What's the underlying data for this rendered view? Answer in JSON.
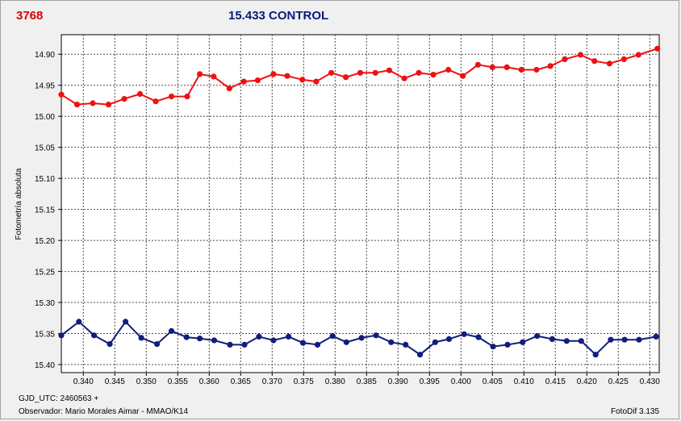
{
  "header": {
    "star_id": "3768",
    "title": "15.433 CONTROL"
  },
  "footer": {
    "gjd": "GJD_UTC: 2460563 +",
    "observer": "Observador: Mario Morales Aimar - MMAO/K14",
    "software": "FotoDif 3.135"
  },
  "colors": {
    "star": "#ee1111",
    "control": "#0f1f7a",
    "title_star": "#dd0000",
    "title_control": "#0a1a7a",
    "grid": "#4a4a4a",
    "plot_bg": "#ffffff"
  },
  "chart_data": {
    "type": "line",
    "title": "15.433 CONTROL",
    "xlabel": "",
    "ylabel": "Fotometría absoluta",
    "xlim": [
      0.3365,
      0.4315
    ],
    "ylim": [
      15.4,
      14.875
    ],
    "y_inverted": true,
    "grid": true,
    "x_ticks": [
      "0.340",
      "0.345",
      "0.350",
      "0.355",
      "0.360",
      "0.365",
      "0.370",
      "0.375",
      "0.380",
      "0.385",
      "0.390",
      "0.395",
      "0.400",
      "0.405",
      "0.410",
      "0.415",
      "0.420",
      "0.425",
      "0.430"
    ],
    "y_ticks": [
      "14.90",
      "14.95",
      "15.00",
      "15.05",
      "15.10",
      "15.15",
      "15.20",
      "15.25",
      "15.30",
      "15.35",
      "15.40"
    ],
    "series": [
      {
        "color": "#ee1111",
        "x": [
          0.3365,
          0.339,
          0.3415,
          0.344,
          0.3465,
          0.349,
          0.3515,
          0.354,
          0.3565,
          0.3585,
          0.3607,
          0.3632,
          0.3655,
          0.3677,
          0.3702,
          0.3724,
          0.3748,
          0.377,
          0.3794,
          0.3817,
          0.384,
          0.3864,
          0.3886,
          0.391,
          0.3933,
          0.3956,
          0.398,
          0.4003,
          0.4027,
          0.405,
          0.4073,
          0.4096,
          0.412,
          0.4142,
          0.4165,
          0.419,
          0.4212,
          0.4236,
          0.4259,
          0.4282,
          0.4312
        ],
        "y": [
          14.965,
          14.981,
          14.979,
          14.981,
          14.972,
          14.964,
          14.976,
          14.968,
          14.968,
          14.932,
          14.936,
          14.955,
          14.944,
          14.942,
          14.932,
          14.935,
          14.941,
          14.944,
          14.93,
          14.937,
          14.93,
          14.93,
          14.926,
          14.939,
          14.93,
          14.933,
          14.925,
          14.935,
          14.917,
          14.921,
          14.921,
          14.925,
          14.925,
          14.919,
          14.908,
          14.901,
          14.911,
          14.915,
          14.908,
          14.901,
          14.891
        ]
      },
      {
        "color": "#0f1f7a",
        "x": [
          0.3365,
          0.3393,
          0.3417,
          0.3442,
          0.3467,
          0.3492,
          0.3517,
          0.354,
          0.3564,
          0.3585,
          0.3608,
          0.3633,
          0.3656,
          0.3679,
          0.3702,
          0.3726,
          0.3749,
          0.3772,
          0.3796,
          0.3818,
          0.3842,
          0.3865,
          0.3889,
          0.3912,
          0.3935,
          0.3959,
          0.3981,
          0.4005,
          0.4028,
          0.4051,
          0.4074,
          0.4098,
          0.4121,
          0.4145,
          0.4168,
          0.4191,
          0.4214,
          0.4238,
          0.426,
          0.4283,
          0.431
        ],
        "y": [
          15.353,
          15.331,
          15.353,
          15.367,
          15.331,
          15.357,
          15.367,
          15.346,
          15.356,
          15.358,
          15.361,
          15.368,
          15.368,
          15.355,
          15.361,
          15.355,
          15.365,
          15.368,
          15.354,
          15.364,
          15.357,
          15.353,
          15.364,
          15.368,
          15.384,
          15.364,
          15.359,
          15.351,
          15.356,
          15.371,
          15.368,
          15.364,
          15.354,
          15.359,
          15.362,
          15.362,
          15.384,
          15.36,
          15.36,
          15.36,
          15.355
        ]
      }
    ]
  }
}
